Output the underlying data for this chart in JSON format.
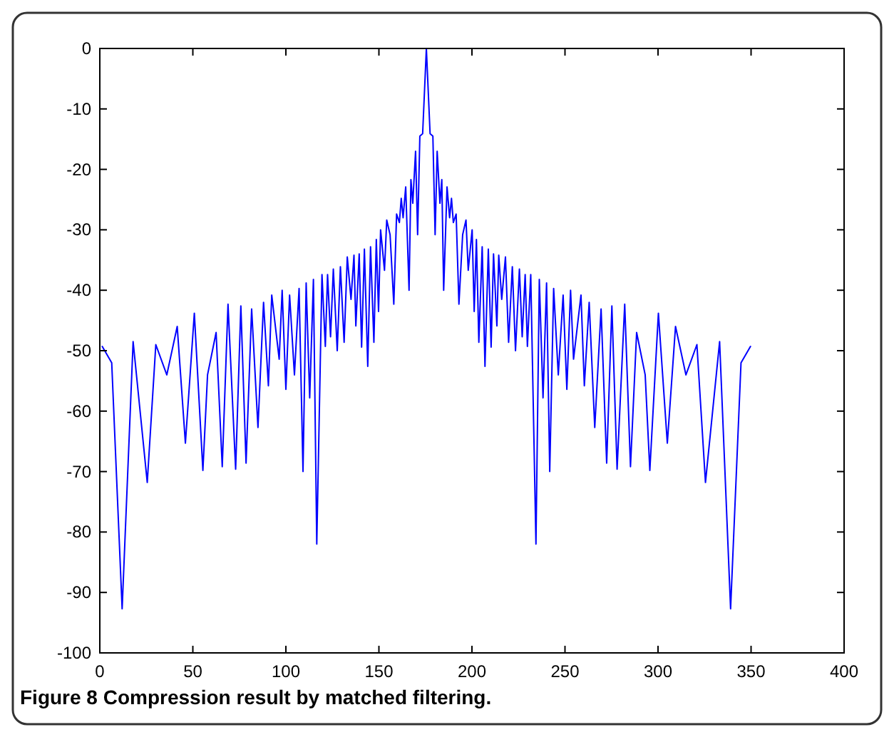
{
  "chart_data": {
    "type": "line",
    "annotations": [
      "Figure 8 Compression result by matched filtering."
    ],
    "xlim": [
      0,
      400
    ],
    "ylim": [
      -100,
      0
    ],
    "xticks": [
      0,
      50,
      100,
      150,
      200,
      250,
      300,
      350,
      400
    ],
    "yticks": [
      -100,
      -90,
      -80,
      -70,
      -60,
      -50,
      -40,
      -30,
      -20,
      -10,
      0
    ],
    "grid": false,
    "marker": "none",
    "line_style": "solid",
    "series": [
      {
        "color": "#0000ff",
        "x": [
          1.3,
          6.4,
          12,
          17.9,
          25.5,
          30.1,
          36,
          41.6,
          46,
          50.8,
          55.4,
          57.9,
          62.5,
          65.8,
          68.9,
          73,
          75.8,
          78.6,
          81.6,
          85,
          88,
          90.6,
          92.4,
          96.4,
          98,
          100,
          102,
          104.6,
          107.1,
          109.2,
          110.9,
          112.8,
          114.8,
          116.6,
          119.4,
          121.2,
          122.4,
          124,
          125.5,
          127.6,
          129.3,
          131.3,
          133,
          135,
          136.6,
          137.6,
          139.4,
          140.7,
          142.2,
          144,
          145.5,
          147.3,
          148.6,
          149.8,
          150.9,
          153,
          154.2,
          156,
          158,
          159.5,
          161,
          162,
          163,
          164.4,
          166.2,
          167.2,
          168.2,
          169.7,
          170.8,
          172,
          173.5,
          175.5,
          177.5,
          179,
          180.2,
          181.3,
          182.8,
          183.8,
          184.8,
          186.6,
          188,
          189,
          190,
          191.5,
          193,
          195,
          196.8,
          198,
          200.1,
          201.2,
          202.4,
          203.7,
          205.5,
          207,
          208.8,
          210.3,
          211.6,
          213.4,
          214.4,
          216,
          218,
          219.7,
          221.7,
          223.4,
          225.5,
          227,
          228.6,
          229.8,
          231.6,
          234.4,
          236.2,
          238.2,
          240.1,
          241.8,
          243.9,
          246.4,
          249,
          251,
          253,
          254.6,
          258.6,
          260.4,
          263,
          266,
          269.4,
          272.4,
          275.2,
          278,
          282.1,
          285.2,
          288.5,
          293.1,
          295.6,
          300.2,
          305,
          309.4,
          315,
          320.9,
          325.5,
          333.1,
          339,
          344.6,
          349.7
        ],
        "values": [
          -49.3,
          -52,
          -92.7,
          -48.5,
          -71.8,
          -49,
          -54,
          -46,
          -65.3,
          -43.8,
          -69.8,
          -54,
          -47,
          -69.2,
          -42.3,
          -69.6,
          -42.6,
          -68.6,
          -43.1,
          -62.7,
          -42,
          -55.8,
          -40.8,
          -51.4,
          -40,
          -56.4,
          -40.8,
          -54,
          -39.7,
          -70,
          -38.8,
          -57.8,
          -38.2,
          -82,
          -37.4,
          -49.3,
          -37.4,
          -47.7,
          -36.5,
          -50,
          -36.1,
          -48.6,
          -34.5,
          -41.5,
          -34.2,
          -45.9,
          -34,
          -49.4,
          -33.2,
          -52.6,
          -32.8,
          -48.6,
          -31.6,
          -43.5,
          -30,
          -36.7,
          -28.4,
          -30.8,
          -42.3,
          -27.4,
          -28.8,
          -24.8,
          -28,
          -22.9,
          -40,
          -21.7,
          -25.6,
          -17,
          -30.8,
          -14.5,
          -14.1,
          0,
          -14.1,
          -14.5,
          -30.8,
          -17,
          -25.6,
          -21.7,
          -40,
          -22.9,
          -28,
          -24.8,
          -28.8,
          -27.4,
          -42.3,
          -30.8,
          -28.4,
          -36.7,
          -30,
          -43.5,
          -31.6,
          -48.6,
          -32.8,
          -52.6,
          -33.2,
          -49.4,
          -34,
          -45.9,
          -34.2,
          -41.5,
          -34.5,
          -48.6,
          -36.1,
          -50,
          -36.5,
          -47.7,
          -37.4,
          -49.3,
          -37.4,
          -82,
          -38.2,
          -57.8,
          -38.8,
          -70,
          -39.7,
          -54,
          -40.8,
          -56.4,
          -40,
          -51.4,
          -40.8,
          -55.8,
          -42,
          -62.7,
          -43.1,
          -68.6,
          -42.6,
          -69.6,
          -42.3,
          -69.2,
          -47,
          -54,
          -69.8,
          -43.8,
          -65.3,
          -46,
          -54,
          -49,
          -71.8,
          -48.5,
          -92.7,
          -52,
          -49.3
        ]
      }
    ]
  }
}
